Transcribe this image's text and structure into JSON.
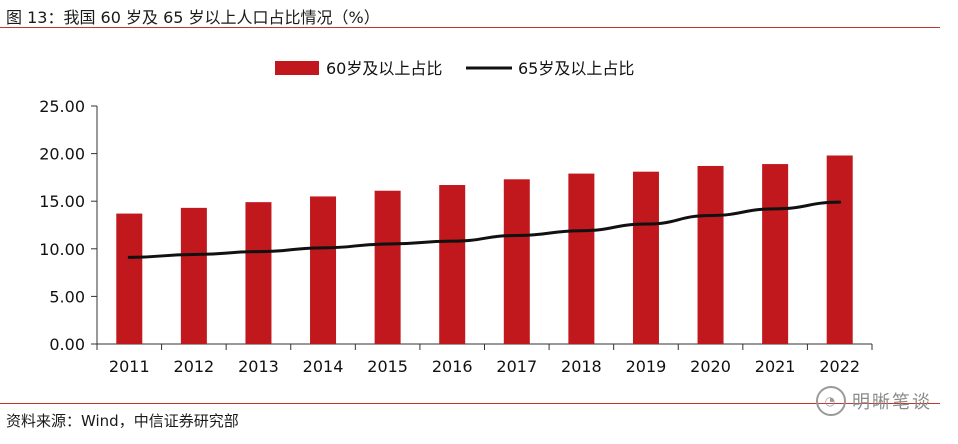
{
  "figure_title": "图 13：我国 60 岁及 65 岁以上人口占比情况（%）",
  "source": "资料来源：Wind，中信证券研究部",
  "watermark": {
    "icon": "wechat-logo-icon",
    "text": "明晰笔谈"
  },
  "colors": {
    "bar": "#c0181c",
    "line": "#111111",
    "rule": "#c0392b",
    "axis": "#333333"
  },
  "chart_data": {
    "type": "bar",
    "categories": [
      "2011",
      "2012",
      "2013",
      "2014",
      "2015",
      "2016",
      "2017",
      "2018",
      "2019",
      "2020",
      "2021",
      "2022"
    ],
    "series": [
      {
        "name": "60岁及以上占比",
        "kind": "bar",
        "values": [
          13.7,
          14.3,
          14.9,
          15.5,
          16.1,
          16.7,
          17.3,
          17.9,
          18.1,
          18.7,
          18.9,
          19.8
        ]
      },
      {
        "name": "65岁及以上占比",
        "kind": "line",
        "values": [
          9.1,
          9.4,
          9.7,
          10.1,
          10.5,
          10.8,
          11.4,
          11.9,
          12.6,
          13.5,
          14.2,
          14.9
        ]
      }
    ],
    "y_ticks": [
      "0.00",
      "5.00",
      "10.00",
      "15.00",
      "20.00",
      "25.00"
    ],
    "ylim": [
      0,
      25
    ],
    "legend_position": "top-center",
    "grid": false
  }
}
